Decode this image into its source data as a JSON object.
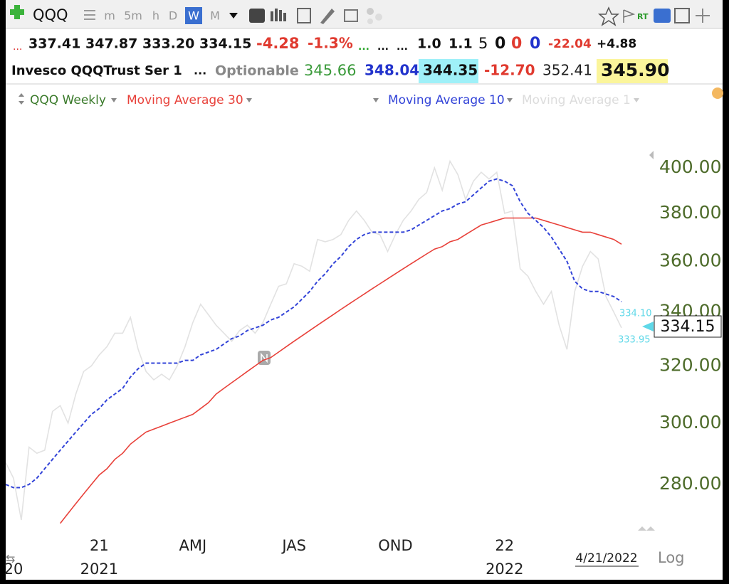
{
  "toolbar": {
    "symbol": "QQQ",
    "intervals": [
      "m",
      "5m",
      "h",
      "D",
      "W",
      "M"
    ]
  },
  "quote": {
    "row1": [
      "...",
      "337.41",
      "347.87",
      "333.20",
      "334.15",
      "-4.28",
      "-1.3%",
      "...",
      "...",
      "...",
      "1.0",
      "1.1",
      "5",
      "0",
      "0",
      "0",
      "-22.04",
      "+4.88"
    ],
    "row2": [
      "Invesco QQQTrust Ser 1",
      "...",
      "Optionable",
      "345.66",
      "348.04",
      "344.35",
      "-12.70",
      "352.41",
      "345.90"
    ]
  },
  "chart_data": {
    "type": "line",
    "log_scale": true,
    "scale_label": "Log",
    "date_label": "4/21/2022",
    "last_price_label": "334.15",
    "bid_label": "334.10",
    "ask_label": "333.95",
    "inactive_legend": "Moving Average 1",
    "categories": [
      null,
      null,
      null,
      null,
      null,
      null,
      null,
      null,
      null,
      null,
      null,
      null,
      "21",
      null,
      null,
      null,
      null,
      null,
      null,
      null,
      null,
      null,
      null,
      null,
      "AMJ",
      null,
      null,
      null,
      null,
      null,
      null,
      null,
      null,
      null,
      null,
      null,
      null,
      "JAS",
      null,
      null,
      null,
      null,
      null,
      null,
      null,
      null,
      null,
      null,
      null,
      null,
      "OND",
      null,
      null,
      null,
      null,
      null,
      null,
      null,
      null,
      null,
      null,
      null,
      null,
      null,
      "22",
      null,
      null,
      null,
      null,
      null,
      null,
      null,
      null,
      null,
      null,
      null,
      null,
      null,
      null,
      null
    ],
    "category_years": [
      null,
      "20",
      null,
      null,
      null,
      null,
      null,
      null,
      null,
      null,
      null,
      null,
      "2021",
      null,
      null,
      null,
      null,
      null,
      null,
      null,
      null,
      null,
      null,
      null,
      null,
      null,
      null,
      null,
      null,
      null,
      null,
      null,
      null,
      null,
      null,
      null,
      null,
      null,
      null,
      null,
      null,
      null,
      null,
      null,
      null,
      null,
      null,
      null,
      null,
      null,
      null,
      null,
      null,
      null,
      null,
      null,
      null,
      null,
      null,
      null,
      null,
      null,
      null,
      null,
      "2022",
      null,
      null,
      null,
      null,
      null,
      null,
      null,
      null,
      null,
      null,
      null,
      null,
      null,
      null,
      null
    ],
    "ylim": [
      266,
      420
    ],
    "yticks": [
      {
        "value": 280,
        "label": "280.00"
      },
      {
        "value": 300,
        "label": "300.00"
      },
      {
        "value": 320,
        "label": "320.00"
      },
      {
        "value": 340,
        "label": "340.00"
      },
      {
        "value": 360,
        "label": "360.00"
      },
      {
        "value": 380,
        "label": "380.00"
      },
      {
        "value": 400,
        "label": "400.00"
      }
    ],
    "series": [
      {
        "name": "QQQ Weekly",
        "color": "#e2e2e2",
        "legend_color": "#3a7a2a",
        "dashed": false,
        "values": [
          287,
          282,
          269,
          292,
          290,
          291,
          304,
          306,
          300,
          310,
          318,
          320,
          324,
          327,
          332,
          332,
          338,
          326,
          318,
          315,
          317,
          315,
          320,
          327,
          336,
          343,
          339,
          335,
          332,
          329,
          333,
          335,
          332,
          336,
          343,
          350,
          351,
          359,
          358,
          356,
          369,
          368,
          369,
          371,
          377,
          381,
          377,
          372,
          371,
          364,
          371,
          377,
          381,
          386,
          389,
          400,
          390,
          403,
          397,
          386,
          394,
          398,
          395,
          398,
          380,
          381,
          357,
          354,
          348,
          343,
          348,
          335,
          326,
          348,
          358,
          364,
          361,
          346,
          340,
          334
        ]
      },
      {
        "name": "Moving Average 30",
        "color": "#e8413a",
        "legend_color": "#e8413a",
        "dashed": false,
        "values": [
          null,
          null,
          null,
          null,
          null,
          null,
          null,
          268,
          271,
          274,
          277,
          280,
          283,
          285,
          288,
          290,
          293,
          295,
          297,
          298,
          299,
          300,
          301,
          302,
          303,
          305,
          307,
          310,
          312,
          314,
          316,
          318,
          320,
          322,
          323,
          325,
          327,
          329,
          331,
          333,
          335,
          337,
          339,
          341,
          343,
          345,
          347,
          349,
          351,
          353,
          355,
          357,
          359,
          361,
          363,
          365,
          366,
          368,
          369,
          371,
          373,
          375,
          376,
          377,
          378,
          378,
          378,
          378,
          378,
          377,
          376,
          375,
          374,
          373,
          372,
          372,
          371,
          370,
          369,
          367
        ]
      },
      {
        "name": "Moving Average 10",
        "color": "#3344d8",
        "legend_color": "#3344d8",
        "dashed": true,
        "values": [
          280,
          279,
          279,
          280,
          282,
          285,
          288,
          291,
          294,
          297,
          300,
          303,
          305,
          308,
          310,
          312,
          316,
          319,
          321,
          321,
          321,
          321,
          321,
          322,
          322,
          324,
          325,
          326,
          328,
          330,
          331,
          333,
          334,
          335,
          337,
          338,
          340,
          342,
          345,
          348,
          352,
          355,
          359,
          362,
          366,
          369,
          371,
          372,
          372,
          372,
          372,
          372,
          373,
          375,
          377,
          379,
          381,
          382,
          384,
          385,
          388,
          391,
          394,
          395,
          394,
          392,
          385,
          380,
          377,
          374,
          370,
          365,
          360,
          352,
          349,
          348,
          348,
          347,
          346,
          344
        ]
      }
    ]
  }
}
